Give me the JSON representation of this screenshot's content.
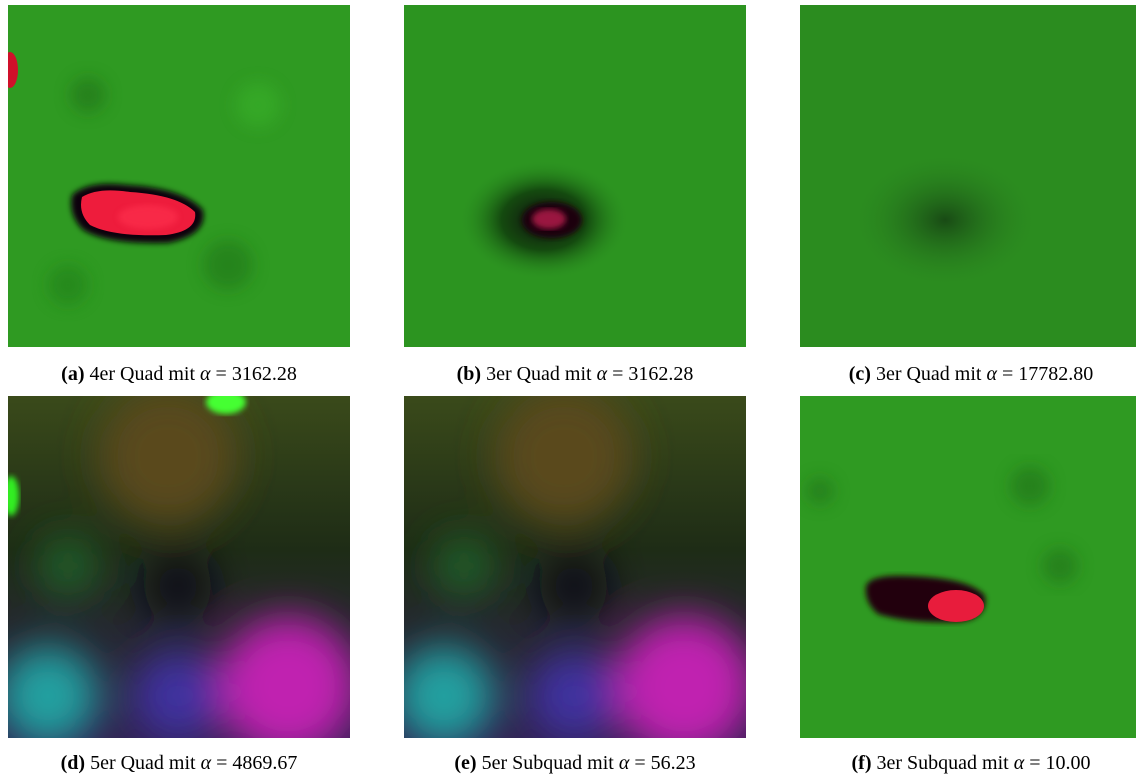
{
  "panels": [
    {
      "label": "(a)",
      "text": "4er Quad mit",
      "symbol": "α",
      "relation": "=",
      "value": "3162.28"
    },
    {
      "label": "(b)",
      "text": "3er Quad mit",
      "symbol": "α",
      "relation": "=",
      "value": "3162.28"
    },
    {
      "label": "(c)",
      "text": "3er Quad mit",
      "symbol": "α",
      "relation": "=",
      "value": "17782.80"
    },
    {
      "label": "(d)",
      "text": "5er Quad mit",
      "symbol": "α",
      "relation": "=",
      "value": "4869.67"
    },
    {
      "label": "(e)",
      "text": "5er Subquad mit",
      "symbol": "α",
      "relation": "=",
      "value": "56.23"
    },
    {
      "label": "(f)",
      "text": "3er Subquad mit",
      "symbol": "α",
      "relation": "=",
      "value": "10.00"
    }
  ]
}
